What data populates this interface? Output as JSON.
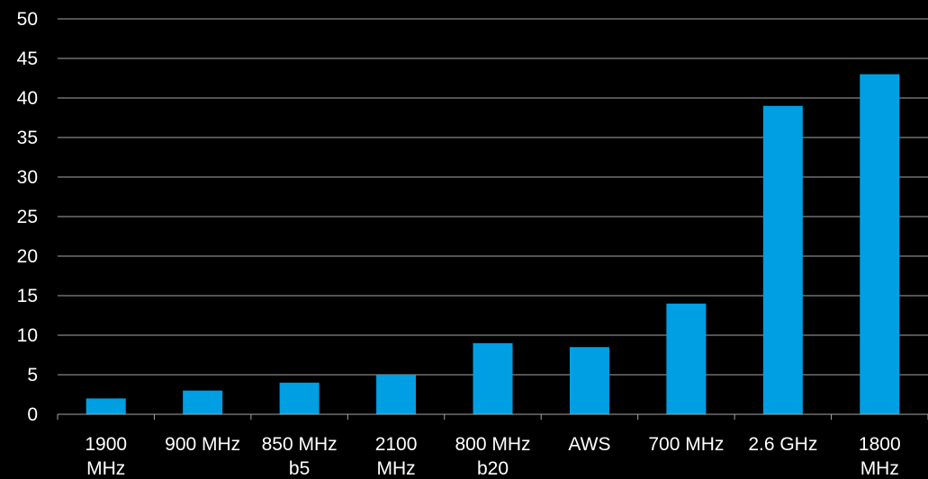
{
  "chart_data": {
    "type": "bar",
    "categories": [
      [
        "1900",
        "MHz"
      ],
      [
        "900 MHz"
      ],
      [
        "850 MHz",
        "b5"
      ],
      [
        "2100",
        "MHz"
      ],
      [
        "800 MHz",
        "b20"
      ],
      [
        "AWS"
      ],
      [
        "700 MHz"
      ],
      [
        "2.6 GHz"
      ],
      [
        "1800",
        "MHz"
      ]
    ],
    "values": [
      2,
      3,
      4,
      5,
      9,
      8.5,
      14,
      39,
      43
    ],
    "ylim": [
      0,
      50
    ],
    "yticks": [
      0,
      5,
      10,
      15,
      20,
      25,
      30,
      35,
      40,
      45,
      50
    ],
    "grid": true,
    "legend": "none",
    "title": "",
    "xlabel": "",
    "ylabel": ""
  },
  "colors": {
    "background": "#000000",
    "bar": "#009fe3",
    "grid": "#a6a6a6",
    "text": "#ffffff"
  }
}
